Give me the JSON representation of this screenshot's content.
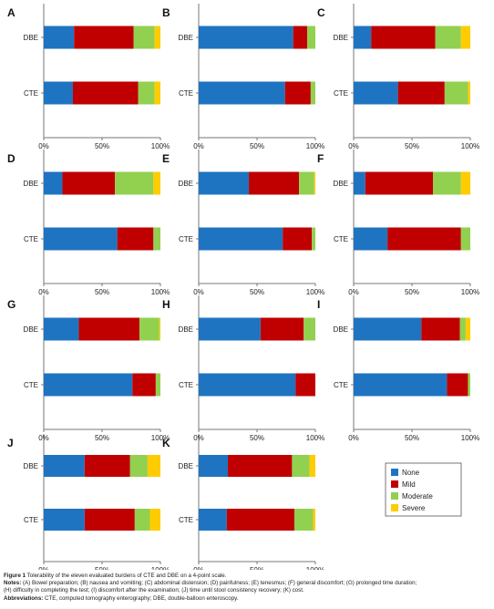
{
  "colors": {
    "None": "#1f74c1",
    "Mild": "#c00000",
    "Moderate": "#92d050",
    "Severe": "#ffcc00"
  },
  "chart_data": {
    "type": "bar",
    "orientation": "horizontal",
    "stacked": true,
    "categories": [
      "DBE",
      "CTE"
    ],
    "x_ticks": [
      "0%",
      "50%",
      "100%"
    ],
    "xlim": [
      0,
      100
    ],
    "legend": {
      "placement": "bottom-right",
      "entries": [
        "None",
        "Mild",
        "Moderate",
        "Severe"
      ]
    },
    "panels": [
      {
        "letter": "A",
        "DBE": [
          26,
          51,
          18,
          5
        ],
        "CTE": [
          25,
          56,
          14,
          5
        ]
      },
      {
        "letter": "B",
        "DBE": [
          81,
          12,
          7,
          0
        ],
        "CTE": [
          74,
          22,
          4,
          0
        ]
      },
      {
        "letter": "C",
        "DBE": [
          15,
          55,
          22,
          8
        ],
        "CTE": [
          38,
          40,
          20,
          2
        ]
      },
      {
        "letter": "D",
        "DBE": [
          16,
          45,
          33,
          6
        ],
        "CTE": [
          63,
          31,
          6,
          0
        ]
      },
      {
        "letter": "E",
        "DBE": [
          43,
          43,
          13,
          1
        ],
        "CTE": [
          72,
          25,
          3,
          0
        ]
      },
      {
        "letter": "F",
        "DBE": [
          10,
          58,
          24,
          8
        ],
        "CTE": [
          29,
          63,
          8,
          0
        ]
      },
      {
        "letter": "G",
        "DBE": [
          30,
          52,
          17,
          1
        ],
        "CTE": [
          76,
          20,
          4,
          0
        ]
      },
      {
        "letter": "H",
        "DBE": [
          53,
          37,
          10,
          0
        ],
        "CTE": [
          83,
          17,
          0,
          0
        ]
      },
      {
        "letter": "I",
        "DBE": [
          58,
          33,
          5,
          4
        ],
        "CTE": [
          80,
          18,
          2,
          0
        ]
      },
      {
        "letter": "J",
        "DBE": [
          35,
          39,
          15,
          11
        ],
        "CTE": [
          35,
          43,
          13,
          9
        ]
      },
      {
        "letter": "K",
        "DBE": [
          25,
          55,
          15,
          5
        ],
        "CTE": [
          24,
          58,
          16,
          2
        ]
      }
    ]
  },
  "caption": {
    "title_label": "Figure 1",
    "title_text": " Tolerability of the eleven evaluated burdens of CTE and DBE on a 4-point scale.",
    "notes_label": "Notes:",
    "notes_line1": " (A) Bowel preparation; (B) nausea and vomiting; (C) abdominal distension; (D) painfulness; (E) tenesmus; (F) general discomfort; (G) prolonged time duration;",
    "notes_line2": "(H) difficulty in completing the test; (I) discomfort after the examination; (J) time until stool consistency recovery; (K) cost.",
    "abbrev_label": "Abbreviations:",
    "abbrev_text": " CTE, computed tomography enterography; DBE, double-balloon enteroscopy."
  }
}
